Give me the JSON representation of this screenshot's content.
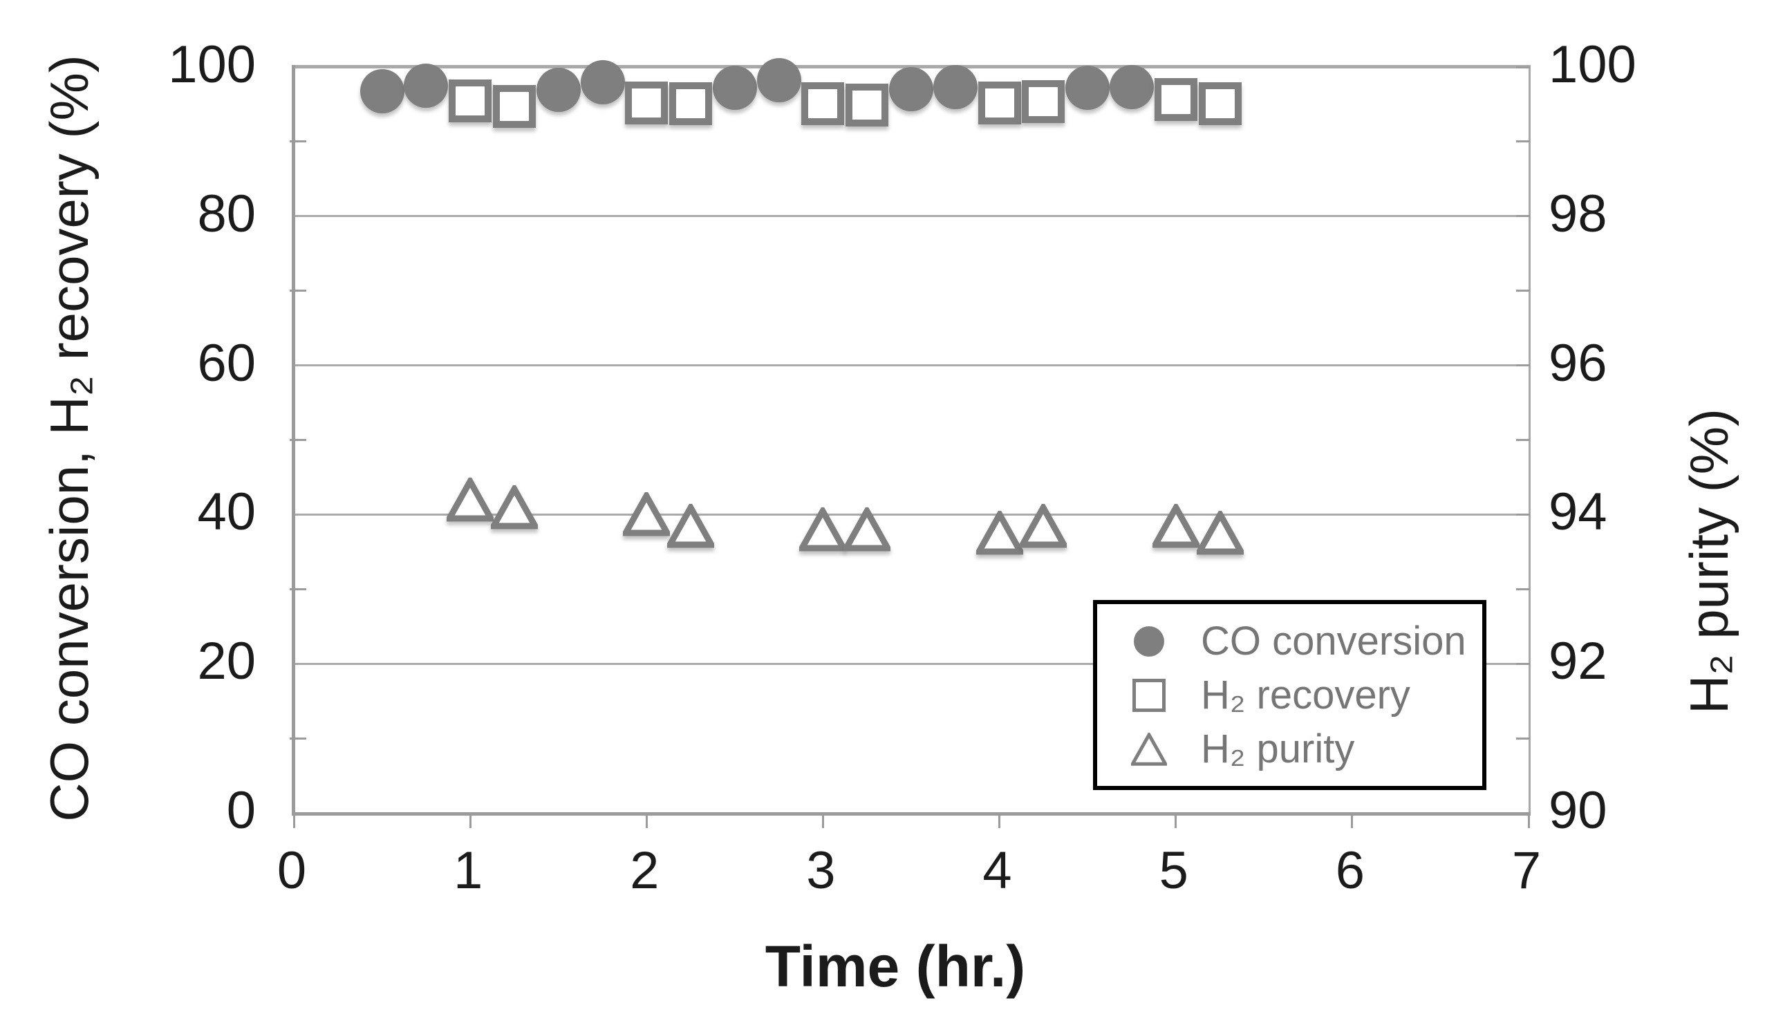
{
  "chart_data": {
    "type": "scatter",
    "title": "",
    "background": "#ffffff",
    "x_axis": {
      "label": "Time (hr.)",
      "range": [
        0,
        7
      ],
      "ticks": [
        0,
        1,
        2,
        3,
        4,
        5,
        6,
        7
      ]
    },
    "y_axis_left": {
      "label": "CO conversion, H₂ recovery (%)",
      "range": [
        0,
        100
      ],
      "ticks": [
        0,
        20,
        40,
        60,
        80,
        100
      ],
      "minor_ticks": [
        10,
        30,
        50,
        70,
        90
      ],
      "gridlines": true
    },
    "y_axis_right": {
      "label": "H₂ purity (%)",
      "range": [
        90,
        100
      ],
      "ticks": [
        90,
        92,
        94,
        96,
        98,
        100
      ],
      "minor_ticks": [
        91,
        93,
        95,
        97,
        99
      ]
    },
    "series": [
      {
        "name": "CO conversion",
        "marker": "filled-circle",
        "axis": "left",
        "points": [
          [
            0.5,
            96.8
          ],
          [
            0.75,
            97.5
          ],
          [
            1.5,
            96.9
          ],
          [
            1.75,
            98.0
          ],
          [
            2.5,
            97.2
          ],
          [
            2.75,
            98.2
          ],
          [
            3.5,
            97.0
          ],
          [
            3.75,
            97.3
          ],
          [
            4.5,
            97.2
          ],
          [
            4.75,
            97.3
          ]
        ]
      },
      {
        "name": "H₂ recovery",
        "marker": "open-square",
        "axis": "left",
        "points": [
          [
            1.0,
            95.5
          ],
          [
            1.25,
            94.7
          ],
          [
            2.0,
            95.2
          ],
          [
            2.25,
            95.1
          ],
          [
            3.0,
            95.1
          ],
          [
            3.25,
            94.9
          ],
          [
            4.0,
            95.2
          ],
          [
            4.25,
            95.4
          ],
          [
            5.0,
            95.6
          ],
          [
            5.25,
            95.1
          ]
        ]
      },
      {
        "name": "H₂ purity",
        "marker": "open-triangle",
        "axis": "right",
        "points": [
          [
            1.0,
            94.2
          ],
          [
            1.25,
            94.1
          ],
          [
            2.0,
            94.0
          ],
          [
            2.25,
            93.85
          ],
          [
            3.0,
            93.8
          ],
          [
            3.25,
            93.8
          ],
          [
            4.0,
            93.75
          ],
          [
            4.25,
            93.85
          ],
          [
            5.0,
            93.85
          ],
          [
            5.25,
            93.75
          ]
        ]
      }
    ],
    "legend": {
      "position": "inside-bottom-right",
      "items": [
        {
          "label": "CO conversion",
          "marker": "filled-circle"
        },
        {
          "label": "H₂ recovery",
          "marker": "open-square"
        },
        {
          "label": "H₂ purity",
          "marker": "open-triangle"
        }
      ]
    },
    "colors": {
      "marker": "#7f7f7f",
      "gridline": "#a9a9a9",
      "axis_line": "#9b9b9b",
      "tick_label": "#1b1b1b",
      "legend_text": "#767676",
      "legend_border": "#000000",
      "background": "#ffffff"
    }
  }
}
